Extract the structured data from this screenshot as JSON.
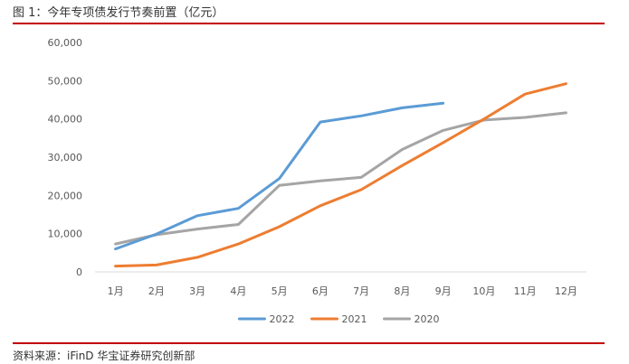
{
  "header": {
    "title": "图 1：今年专项债发行节奏前置（亿元）"
  },
  "footer": {
    "source": "资料来源：iFinD  华宝证券研究创新部"
  },
  "colors": {
    "rule": "#c00000",
    "axis": "#d9d9d9",
    "text": "#595959"
  },
  "chart_data": {
    "type": "line",
    "title": "今年专项债发行节奏前置（亿元）",
    "xlabel": "",
    "ylabel": "",
    "categories": [
      "1月",
      "2月",
      "3月",
      "4月",
      "5月",
      "6月",
      "7月",
      "8月",
      "9月",
      "10月",
      "11月",
      "12月"
    ],
    "ylim": [
      0,
      60000
    ],
    "yticks": [
      0,
      10000,
      20000,
      30000,
      40000,
      50000,
      60000
    ],
    "ytick_labels": [
      "0",
      "10,000",
      "20,000",
      "30,000",
      "40,000",
      "50,000",
      "60,000"
    ],
    "grid": false,
    "legend_position": "bottom",
    "series": [
      {
        "name": "2022",
        "color": "#5b9bd5",
        "values": [
          6000,
          9900,
          14700,
          16600,
          24400,
          39200,
          40800,
          42900,
          44100,
          null,
          null,
          null
        ]
      },
      {
        "name": "2021",
        "color": "#ed7d31",
        "values": [
          1500,
          1800,
          3800,
          7300,
          11800,
          17300,
          21500,
          27800,
          33800,
          40000,
          46500,
          49200
        ]
      },
      {
        "name": "2020",
        "color": "#a5a5a5",
        "values": [
          7300,
          9700,
          11200,
          12400,
          22600,
          23800,
          24700,
          32000,
          37000,
          39700,
          40400,
          41600
        ]
      }
    ]
  }
}
